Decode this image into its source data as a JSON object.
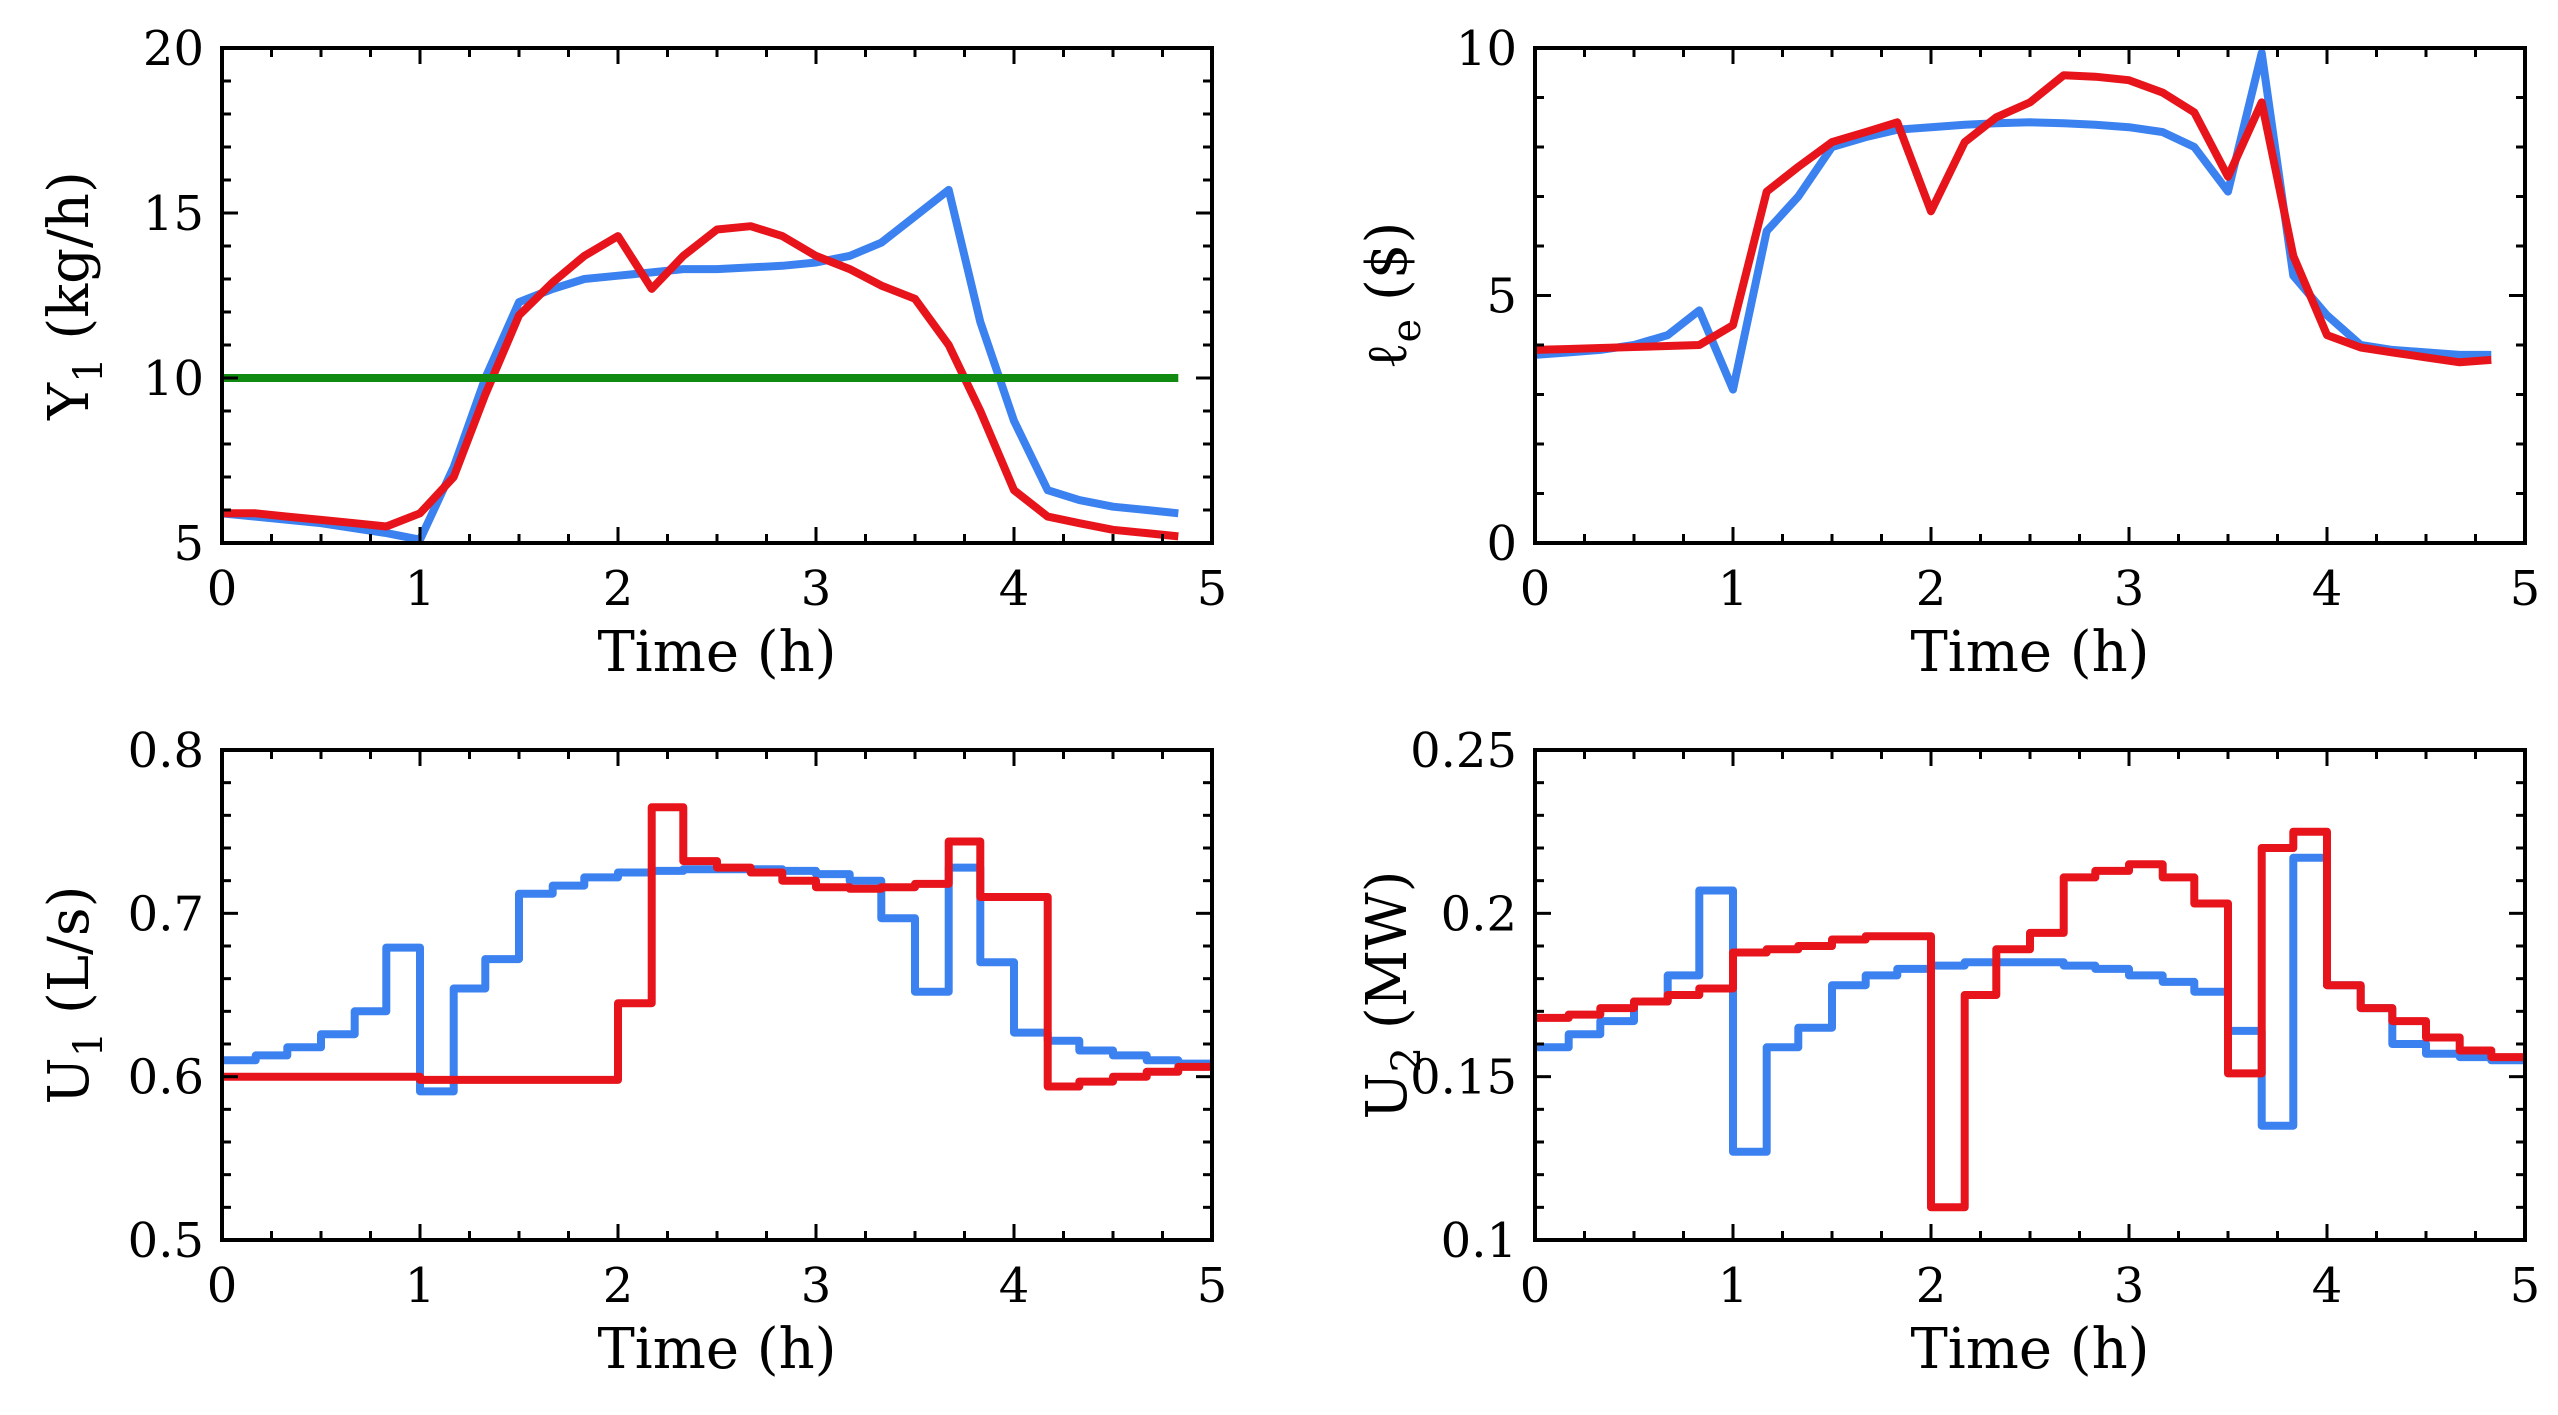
{
  "colors": {
    "blue": "#3b82f0",
    "red": "#e8141b",
    "green": "#118a11",
    "axis": "#000000"
  },
  "chart_data": [
    {
      "id": "y1",
      "type": "line",
      "xlabel": "Time (h)",
      "ylabel": "Y",
      "ylabel_sub": "1",
      "ylabel_unit": " (kg/h)",
      "xlim": [
        0,
        5
      ],
      "ylim": [
        5,
        20
      ],
      "xticks": [
        0,
        1,
        2,
        3,
        4,
        5
      ],
      "yticks": [
        5,
        10,
        15,
        20
      ],
      "xtick_labels": [
        "0",
        "1",
        "2",
        "3",
        "4",
        "5"
      ],
      "ytick_labels": [
        "5",
        "10",
        "15",
        "20"
      ],
      "series": [
        {
          "name": "blue",
          "color": "#3b82f0",
          "step": false,
          "x": [
            0,
            0.5,
            0.83,
            1.0,
            1.17,
            1.33,
            1.5,
            1.67,
            1.83,
            2.0,
            2.17,
            2.33,
            2.5,
            2.67,
            2.83,
            3.0,
            3.17,
            3.33,
            3.5,
            3.67,
            3.83,
            4.0,
            4.17,
            4.33,
            4.5,
            4.67,
            4.83
          ],
          "y": [
            5.9,
            5.6,
            5.3,
            5.1,
            7.3,
            10.0,
            12.3,
            12.7,
            13.0,
            13.1,
            13.2,
            13.3,
            13.3,
            13.35,
            13.4,
            13.5,
            13.7,
            14.1,
            14.9,
            15.7,
            11.7,
            8.7,
            6.6,
            6.3,
            6.1,
            6.0,
            5.9
          ]
        },
        {
          "name": "red",
          "color": "#e8141b",
          "step": false,
          "x": [
            0,
            0.17,
            0.33,
            0.5,
            0.67,
            0.83,
            1.0,
            1.17,
            1.33,
            1.5,
            1.67,
            1.83,
            2.0,
            2.17,
            2.33,
            2.5,
            2.67,
            2.83,
            3.0,
            3.17,
            3.33,
            3.5,
            3.67,
            3.83,
            4.0,
            4.17,
            4.33,
            4.5,
            4.67,
            4.83
          ],
          "y": [
            5.9,
            5.9,
            5.8,
            5.7,
            5.6,
            5.5,
            5.9,
            7.0,
            9.5,
            11.9,
            12.9,
            13.7,
            14.3,
            12.7,
            13.7,
            14.5,
            14.6,
            14.3,
            13.7,
            13.3,
            12.8,
            12.4,
            11.0,
            9.0,
            6.6,
            5.8,
            5.6,
            5.4,
            5.3,
            5.2
          ]
        },
        {
          "name": "green",
          "color": "#118a11",
          "step": false,
          "x": [
            0,
            4.83
          ],
          "y": [
            10,
            10
          ]
        }
      ]
    },
    {
      "id": "le",
      "type": "line",
      "xlabel": "Time (h)",
      "ylabel": "ℓ",
      "ylabel_sub": "e",
      "ylabel_unit": " ($)",
      "xlim": [
        0,
        5
      ],
      "ylim": [
        0,
        10
      ],
      "xticks": [
        0,
        1,
        2,
        3,
        4,
        5
      ],
      "yticks": [
        0,
        5,
        10
      ],
      "xtick_labels": [
        "0",
        "1",
        "2",
        "3",
        "4",
        "5"
      ],
      "ytick_labels": [
        "0",
        "5",
        "10"
      ],
      "series": [
        {
          "name": "blue",
          "color": "#3b82f0",
          "step": false,
          "x": [
            0,
            0.17,
            0.33,
            0.5,
            0.67,
            0.83,
            1.0,
            1.17,
            1.33,
            1.5,
            1.67,
            1.83,
            2.0,
            2.17,
            2.33,
            2.5,
            2.67,
            2.83,
            3.0,
            3.17,
            3.33,
            3.5,
            3.67,
            3.83,
            4.0,
            4.17,
            4.33,
            4.5,
            4.67,
            4.83
          ],
          "y": [
            3.8,
            3.85,
            3.9,
            4.0,
            4.2,
            4.7,
            3.1,
            6.3,
            7.0,
            8.0,
            8.2,
            8.35,
            8.4,
            8.45,
            8.48,
            8.5,
            8.48,
            8.45,
            8.4,
            8.3,
            8.0,
            7.1,
            9.9,
            5.4,
            4.6,
            4.0,
            3.9,
            3.85,
            3.8,
            3.8
          ]
        },
        {
          "name": "red",
          "color": "#e8141b",
          "step": false,
          "x": [
            0,
            0.17,
            0.33,
            0.5,
            0.67,
            0.83,
            1.0,
            1.17,
            1.33,
            1.5,
            1.67,
            1.83,
            2.0,
            2.17,
            2.33,
            2.5,
            2.67,
            2.83,
            3.0,
            3.17,
            3.33,
            3.5,
            3.67,
            3.83,
            4.0,
            4.17,
            4.33,
            4.5,
            4.67,
            4.83
          ],
          "y": [
            3.9,
            3.92,
            3.94,
            3.96,
            3.98,
            4.0,
            4.4,
            7.1,
            7.6,
            8.1,
            8.3,
            8.5,
            6.7,
            8.1,
            8.6,
            8.9,
            9.45,
            9.42,
            9.35,
            9.1,
            8.7,
            7.4,
            8.9,
            5.8,
            4.2,
            3.95,
            3.85,
            3.75,
            3.65,
            3.7
          ]
        }
      ]
    },
    {
      "id": "u1",
      "type": "line",
      "xlabel": "Time (h)",
      "ylabel": "U",
      "ylabel_sub": "1",
      "ylabel_unit": " (L/s)",
      "xlim": [
        0,
        5
      ],
      "ylim": [
        0.5,
        0.8
      ],
      "xticks": [
        0,
        1,
        2,
        3,
        4,
        5
      ],
      "yticks": [
        0.5,
        0.6,
        0.7,
        0.8
      ],
      "xtick_labels": [
        "0",
        "1",
        "2",
        "3",
        "4",
        "5"
      ],
      "ytick_labels": [
        "0.5",
        "0.6",
        "0.7",
        "0.8"
      ],
      "series": [
        {
          "name": "blue",
          "color": "#3b82f0",
          "step": true,
          "x": [
            0,
            0.17,
            0.33,
            0.5,
            0.67,
            0.83,
            1.0,
            1.17,
            1.33,
            1.5,
            1.67,
            1.83,
            2.0,
            2.17,
            2.33,
            2.5,
            2.67,
            2.83,
            3.0,
            3.17,
            3.33,
            3.5,
            3.67,
            3.83,
            4.0,
            4.17,
            4.33,
            4.5,
            4.67,
            4.83
          ],
          "y": [
            0.61,
            0.613,
            0.618,
            0.626,
            0.64,
            0.679,
            0.591,
            0.654,
            0.672,
            0.712,
            0.717,
            0.722,
            0.725,
            0.726,
            0.727,
            0.727,
            0.727,
            0.726,
            0.724,
            0.72,
            0.697,
            0.652,
            0.728,
            0.67,
            0.627,
            0.622,
            0.616,
            0.613,
            0.61,
            0.608
          ]
        },
        {
          "name": "red",
          "color": "#e8141b",
          "step": true,
          "x": [
            0,
            1.0,
            2.0,
            2.17,
            2.33,
            2.5,
            2.67,
            2.83,
            3.0,
            3.17,
            3.33,
            3.5,
            3.67,
            3.83,
            4.0,
            4.17,
            4.33,
            4.5,
            4.67,
            4.83
          ],
          "y": [
            0.6,
            0.598,
            0.645,
            0.765,
            0.732,
            0.728,
            0.725,
            0.72,
            0.716,
            0.715,
            0.716,
            0.718,
            0.744,
            0.71,
            0.71,
            0.594,
            0.597,
            0.6,
            0.603,
            0.606
          ]
        }
      ]
    },
    {
      "id": "u2",
      "type": "line",
      "xlabel": "Time (h)",
      "ylabel": "U",
      "ylabel_sub": "2",
      "ylabel_unit": " (MW)",
      "xlim": [
        0,
        5
      ],
      "ylim": [
        0.1,
        0.25
      ],
      "xticks": [
        0,
        1,
        2,
        3,
        4,
        5
      ],
      "yticks": [
        0.1,
        0.15,
        0.2,
        0.25
      ],
      "xtick_labels": [
        "0",
        "1",
        "2",
        "3",
        "4",
        "5"
      ],
      "ytick_labels": [
        "0.1",
        "0.15",
        "0.2",
        "0.25"
      ],
      "series": [
        {
          "name": "blue",
          "color": "#3b82f0",
          "step": true,
          "x": [
            0,
            0.17,
            0.33,
            0.5,
            0.67,
            0.83,
            1.0,
            1.17,
            1.33,
            1.5,
            1.67,
            1.83,
            2.0,
            2.17,
            2.33,
            2.5,
            2.67,
            2.83,
            3.0,
            3.17,
            3.33,
            3.5,
            3.67,
            3.83,
            4.0,
            4.17,
            4.33,
            4.5,
            4.67,
            4.83
          ],
          "y": [
            0.159,
            0.163,
            0.167,
            0.173,
            0.181,
            0.207,
            0.127,
            0.159,
            0.165,
            0.178,
            0.181,
            0.183,
            0.184,
            0.185,
            0.185,
            0.185,
            0.184,
            0.183,
            0.181,
            0.179,
            0.176,
            0.164,
            0.135,
            0.217,
            0.178,
            0.171,
            0.16,
            0.157,
            0.156,
            0.155
          ]
        },
        {
          "name": "red",
          "color": "#e8141b",
          "step": true,
          "x": [
            0,
            0.17,
            0.33,
            0.5,
            0.67,
            0.83,
            1.0,
            1.17,
            1.33,
            1.5,
            1.67,
            1.83,
            2.0,
            2.17,
            2.33,
            2.5,
            2.67,
            2.83,
            3.0,
            3.17,
            3.33,
            3.5,
            3.67,
            3.83,
            4.0,
            4.17,
            4.33,
            4.5,
            4.67,
            4.83
          ],
          "y": [
            0.168,
            0.169,
            0.171,
            0.173,
            0.175,
            0.177,
            0.188,
            0.189,
            0.19,
            0.192,
            0.193,
            0.193,
            0.11,
            0.175,
            0.189,
            0.194,
            0.211,
            0.213,
            0.215,
            0.211,
            0.203,
            0.151,
            0.22,
            0.225,
            0.178,
            0.171,
            0.167,
            0.162,
            0.158,
            0.156
          ]
        }
      ]
    }
  ]
}
